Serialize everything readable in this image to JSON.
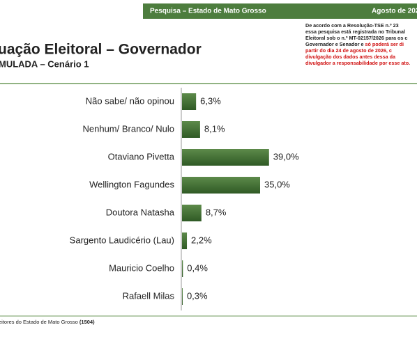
{
  "header": {
    "text": "Pesquisa – Estado de Mato Grosso",
    "date": "Agosto de 202"
  },
  "title": "uação Eleitoral – Governador",
  "subtitle": "MULADA – Cenário 1",
  "notice": [
    [
      {
        "text": "De acordo com a Resolução-TSE n.º 23"
      }
    ],
    [
      {
        "text": "essa pesquisa está registrada no Tribunal"
      }
    ],
    [
      {
        "text": "Eleitoral sob o n.º MT-02157/2026 para os c"
      }
    ],
    [
      {
        "text": "Governador e Senador e "
      },
      {
        "text": "só poderá ser di",
        "color": "red"
      }
    ],
    [
      {
        "text": "partir do dia 24 de agosto de 2026, c",
        "color": "red"
      }
    ],
    [
      {
        "text": "divulgação dos dados antes dessa da",
        "color": "red"
      }
    ],
    [
      {
        "text": "divulgador a responsabilidade por esse ato.",
        "color": "red"
      }
    ]
  ],
  "chart_data": {
    "type": "bar",
    "orientation": "horizontal",
    "color": "#3d6b30",
    "categories": [
      "Não sabe/ não opinou",
      "Nenhum/ Branco/ Nulo",
      "Otaviano Pivetta",
      "Wellington Fagundes",
      "Doutora Natasha",
      "Sargento Laudicério (Lau)",
      "Mauricio Coelho",
      "Rafaell Milas"
    ],
    "values": [
      6.3,
      8.1,
      39.0,
      35.0,
      8.7,
      2.2,
      0.4,
      0.3
    ],
    "value_labels": [
      "6,3%",
      "8,1%",
      "39,0%",
      "35,0%",
      "8,7%",
      "2,2%",
      "0,4%",
      "0,3%"
    ]
  },
  "footer": {
    "text": "eitores do Estado de Mato Grosso",
    "sample": "(1504)"
  }
}
